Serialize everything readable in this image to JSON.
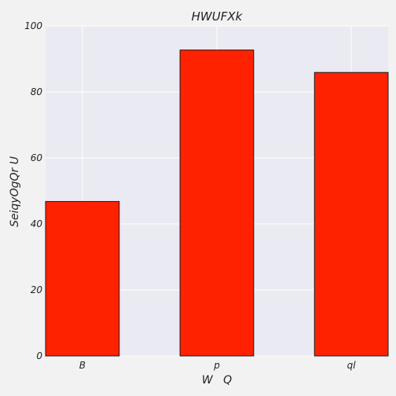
{
  "chart_data": {
    "type": "bar",
    "title": "HWUFXk",
    "xlabel": "W   Q",
    "ylabel": "SeiqyOgQr U",
    "categories": [
      "B",
      "p",
      "ql"
    ],
    "values": [
      46.8,
      92.7,
      85.9
    ],
    "ylim": [
      0,
      100
    ],
    "yticks": [
      "0",
      "20",
      "40",
      "60",
      "80",
      "100"
    ],
    "grid": true,
    "legend": "none",
    "colors": {
      "bar": "#ff2200",
      "bar_edge": "#1a1a1a",
      "plot_background": "#eaeaf2",
      "page_background": "#f2f2f2",
      "grid": "#ffffff"
    }
  }
}
